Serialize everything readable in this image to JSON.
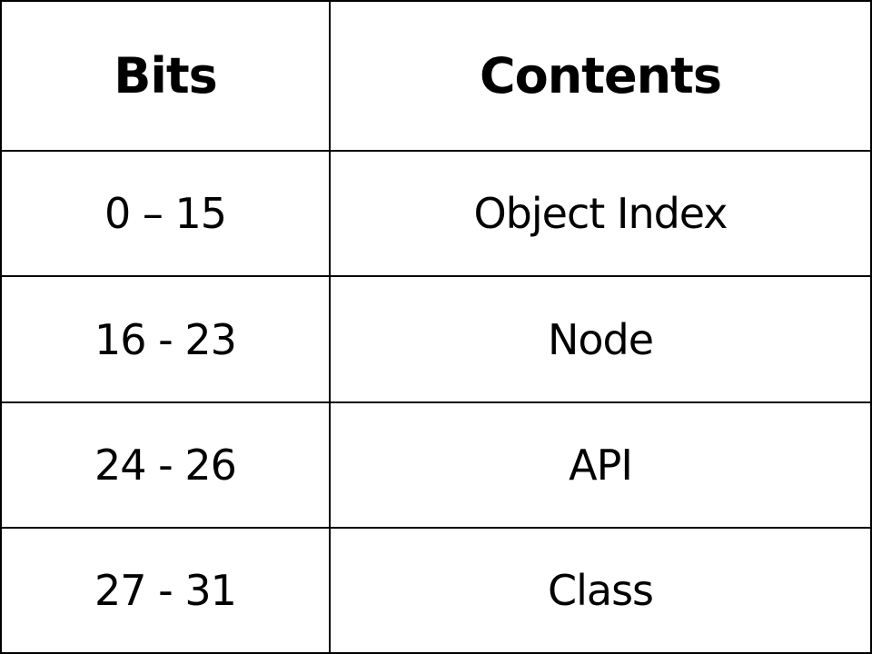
{
  "table": {
    "headers": [
      "Bits",
      "Contents"
    ],
    "rows": [
      [
        "0 – 15",
        "Object Index"
      ],
      [
        "16 - 23",
        "Node"
      ],
      [
        "24 - 26",
        "API"
      ],
      [
        "27 - 31",
        "Class"
      ]
    ]
  }
}
